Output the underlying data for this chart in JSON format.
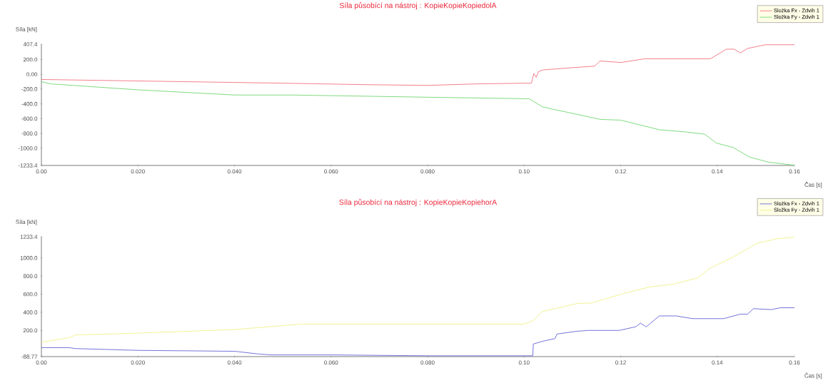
{
  "chart_data": [
    {
      "type": "line",
      "title": "Síla působící na nástroj : KopieKopieKopiedolA",
      "xlabel": "Čas [s]",
      "ylabel": "Síla [kN]",
      "legend": "top right",
      "marker": "none",
      "line_style": "solid",
      "xlim": [
        0,
        0.156
      ],
      "ylim": [
        -1233.4,
        407.4
      ],
      "xticks": [
        {
          "value": 0,
          "label": "0.00"
        },
        {
          "value": 0.02,
          "label": "0.020"
        },
        {
          "value": 0.04,
          "label": "0.040"
        },
        {
          "value": 0.06,
          "label": "0.060"
        },
        {
          "value": 0.08,
          "label": "0.080"
        },
        {
          "value": 0.1,
          "label": "0.10"
        },
        {
          "value": 0.12,
          "label": "0.12"
        },
        {
          "value": 0.14,
          "label": "0.14"
        },
        {
          "value": 0.156,
          "label": "0.16"
        }
      ],
      "yticks": [
        407.4,
        {
          "value": 200,
          "label": "200.0"
        },
        {
          "value": 0,
          "label": "0.00"
        },
        {
          "value": -200,
          "label": "-200.0"
        },
        {
          "value": -400,
          "label": "-400.0"
        },
        {
          "value": -600,
          "label": "-600.0"
        },
        {
          "value": -800,
          "label": "-800.0"
        },
        {
          "value": -1000,
          "label": "-1000.0"
        },
        -1233.4
      ],
      "series": [
        {
          "name": "Složka Fx - Zdvih 1",
          "color": "#f06070",
          "x": [
            0,
            0.02,
            0.04,
            0.05,
            0.067,
            0.08,
            0.09,
            0.1,
            0.1015,
            0.102,
            0.1025,
            0.103,
            0.104,
            0.11,
            0.1146,
            0.1157,
            0.12,
            0.125,
            0.1386,
            0.1419,
            0.1435,
            0.1448,
            0.1463,
            0.15,
            0.156
          ],
          "values": [
            -70,
            -90,
            -110,
            -120,
            -140,
            -150,
            -130,
            -120,
            -120,
            10,
            -40,
            40,
            60,
            90,
            110,
            180,
            160,
            210,
            210,
            340,
            340,
            290,
            350,
            400,
            400
          ]
        },
        {
          "name": "Složka Fy - Zdvih 1",
          "color": "#60d060",
          "x": [
            0,
            0.002,
            0.02,
            0.04,
            0.052,
            0.08,
            0.1,
            0.101,
            0.1038,
            0.1058,
            0.1087,
            0.1158,
            0.12,
            0.128,
            0.1335,
            0.1374,
            0.1398,
            0.1433,
            0.1467,
            0.1507,
            0.156
          ],
          "values": [
            -100,
            -130,
            -210,
            -280,
            -280,
            -310,
            -330,
            -330,
            -440,
            -470,
            -510,
            -610,
            -620,
            -750,
            -780,
            -810,
            -930,
            -990,
            -1120,
            -1190,
            -1230
          ]
        }
      ]
    },
    {
      "type": "line",
      "title": "Síla působící na nástroj : KopieKopieKopiehorA",
      "xlabel": "Čas [s]",
      "ylabel": "Síla [kN]",
      "legend": "top right",
      "marker": "none",
      "line_style": "solid",
      "xlim": [
        0,
        0.156
      ],
      "ylim": [
        -88.77,
        1233.4
      ],
      "xticks": [
        {
          "value": 0,
          "label": "0.00"
        },
        {
          "value": 0.02,
          "label": "0.020"
        },
        {
          "value": 0.04,
          "label": "0.040"
        },
        {
          "value": 0.06,
          "label": "0.060"
        },
        {
          "value": 0.08,
          "label": "0.080"
        },
        {
          "value": 0.1,
          "label": "0.10"
        },
        {
          "value": 0.12,
          "label": "0.12"
        },
        {
          "value": 0.14,
          "label": "0.14"
        },
        {
          "value": 0.156,
          "label": "0.16"
        }
      ],
      "yticks": [
        1233.4,
        {
          "value": 1000,
          "label": "1000.0"
        },
        {
          "value": 800,
          "label": "800.0"
        },
        {
          "value": 600,
          "label": "600.0"
        },
        {
          "value": 400,
          "label": "400.0"
        },
        {
          "value": 200,
          "label": "200.0"
        },
        -88.77
      ],
      "series": [
        {
          "name": "Složka Fx - Zdvih 1",
          "color": "#5050d0",
          "x": [
            0,
            0.0058,
            0.007,
            0.02,
            0.04,
            0.045,
            0.0476,
            0.06,
            0.08,
            0.1,
            0.1018,
            0.1019,
            0.1038,
            0.1064,
            0.1068,
            0.1108,
            0.1132,
            0.1197,
            0.1231,
            0.1241,
            0.1253,
            0.128,
            0.1315,
            0.1349,
            0.1413,
            0.1448,
            0.1463,
            0.1475,
            0.1512,
            0.1531,
            0.156
          ],
          "values": [
            10,
            10,
            0,
            -20,
            -30,
            -60,
            -70,
            -70,
            -80,
            -80,
            -80,
            50,
            80,
            110,
            160,
            190,
            200,
            200,
            240,
            280,
            240,
            360,
            360,
            330,
            330,
            380,
            380,
            440,
            430,
            450,
            450
          ]
        },
        {
          "name": "Složka Fy - Zdvih 1",
          "color": "#eef07a",
          "x": [
            0,
            0.0058,
            0.007,
            0.02,
            0.04,
            0.054,
            0.1,
            0.1019,
            0.1038,
            0.1064,
            0.1112,
            0.1138,
            0.1201,
            0.126,
            0.1309,
            0.136,
            0.1383,
            0.1433,
            0.1482,
            0.1522,
            0.156
          ],
          "values": [
            70,
            120,
            150,
            170,
            210,
            270,
            270,
            310,
            410,
            440,
            500,
            500,
            600,
            680,
            710,
            780,
            880,
            1010,
            1160,
            1210,
            1230
          ]
        }
      ]
    }
  ]
}
